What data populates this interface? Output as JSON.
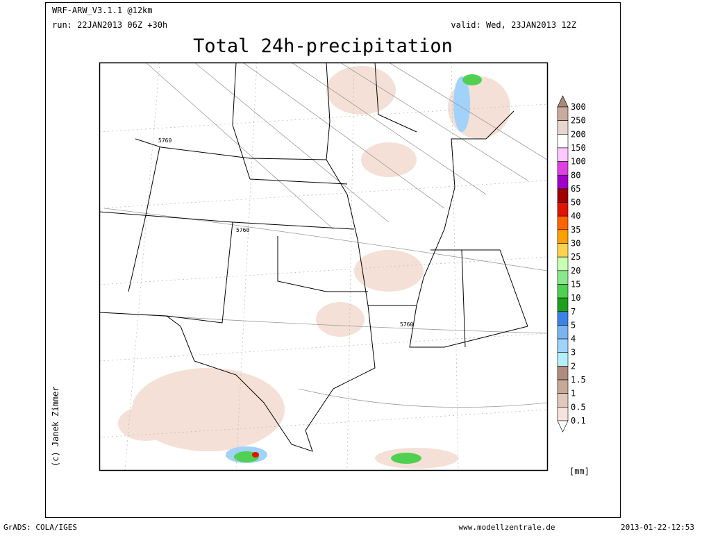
{
  "header": {
    "model": "WRF-ARW_V3.1.1 @12km",
    "run": "run: 22JAN2013 06Z +30h",
    "valid": "valid: Wed, 23JAN2013 12Z",
    "title": "Total 24h-precipitation"
  },
  "map": {
    "contour_labels": [
      "5760",
      "5760",
      "5760"
    ],
    "credit": "(c) Janek Zimmer"
  },
  "colorbar": {
    "labels": [
      300,
      250,
      200,
      150,
      100,
      80,
      65,
      50,
      40,
      35,
      30,
      25,
      20,
      15,
      10,
      7,
      5,
      4,
      3,
      2,
      1.5,
      1,
      0.5,
      0.1
    ],
    "colors": [
      "#a8897a",
      "#c8ab9c",
      "#e8d6cc",
      "#ffffff",
      "#ffc8ff",
      "#e040e0",
      "#a000c8",
      "#a00000",
      "#e01400",
      "#ff6400",
      "#ffa000",
      "#ffd250",
      "#c8ffb4",
      "#8ce68c",
      "#50d050",
      "#1ea01e",
      "#3c82e6",
      "#78b4f0",
      "#a0d2fa",
      "#b4f0fa",
      "#b08c80",
      "#c8a898",
      "#e1c8bc",
      "#f5e4dc",
      "#ffffff"
    ],
    "unit": "[mm]"
  },
  "footer": {
    "left": "GrADS: COLA/IGES",
    "center": "www.modellzentrale.de",
    "right": "2013-01-22-12:53"
  }
}
